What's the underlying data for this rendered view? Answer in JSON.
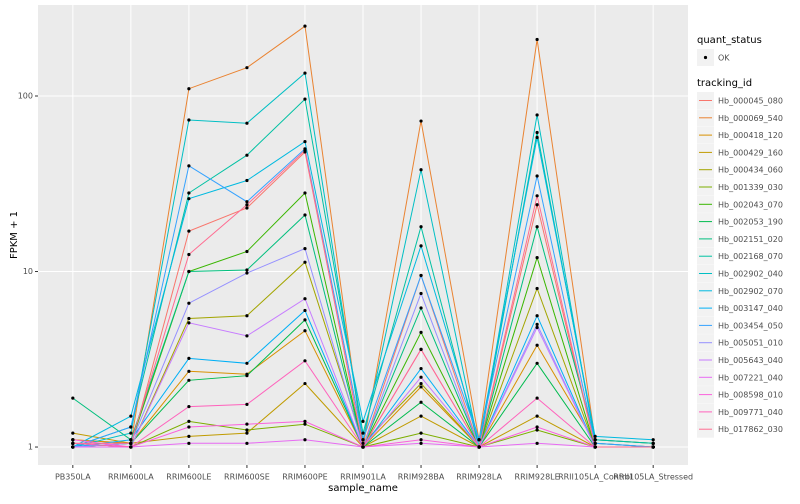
{
  "chart_data": {
    "type": "line",
    "y_label": "FPKM + 1",
    "x_label": "sample_name",
    "categories": [
      "PB350LA",
      "RRIM600LA",
      "RRIM600LE",
      "RRIM600SE",
      "RRIM600PE",
      "RRIM901LA",
      "RRIM928BA",
      "RRIM928LA",
      "RRIM928LE",
      "RRII105LA_Control",
      "RRII105LA_Stressed"
    ],
    "ylim": [
      0.79,
      330
    ],
    "yticks": [
      1,
      10,
      100
    ],
    "log_y": true,
    "grid": true,
    "status_legend_title": "quant_status",
    "status_legend_entry": "OK",
    "point_color": "#000000",
    "legend_title": "tracking_id",
    "series": [
      {
        "name": "Hb_000045_080",
        "color": "#F8766D",
        "values": [
          1.05,
          1.0,
          17,
          23,
          48,
          1.0,
          9.5,
          1.0,
          24,
          1.0,
          1.0
        ]
      },
      {
        "name": "Hb_000069_540",
        "color": "#EA8331",
        "values": [
          1.1,
          1.05,
          110,
          145,
          250,
          1.0,
          72,
          1.1,
          210,
          1.1,
          1.05
        ]
      },
      {
        "name": "Hb_000418_120",
        "color": "#D89000",
        "values": [
          1.1,
          1.05,
          2.7,
          2.6,
          4.6,
          1.0,
          2.2,
          1.0,
          3.8,
          1.05,
          1.0
        ]
      },
      {
        "name": "Hb_000429_160",
        "color": "#C09B00",
        "values": [
          1.2,
          1.05,
          1.15,
          1.2,
          2.3,
          1.0,
          1.5,
          1.0,
          1.5,
          1.0,
          1.0
        ]
      },
      {
        "name": "Hb_000434_060",
        "color": "#A3A500",
        "values": [
          1.0,
          1.0,
          5.4,
          5.6,
          11.3,
          1.05,
          2.3,
          1.0,
          8,
          1.0,
          1.0
        ]
      },
      {
        "name": "Hb_001339_030",
        "color": "#7CAE00",
        "values": [
          1.05,
          1.0,
          1.4,
          1.25,
          1.35,
          1.0,
          1.2,
          1.0,
          1.25,
          1.0,
          1.0
        ]
      },
      {
        "name": "Hb_002043_070",
        "color": "#39B600",
        "values": [
          1.0,
          1.05,
          10,
          13,
          28,
          1.0,
          4.5,
          1.0,
          12,
          1.0,
          1.0
        ]
      },
      {
        "name": "Hb_002053_190",
        "color": "#00BB4E",
        "values": [
          1.0,
          1.05,
          2.4,
          2.55,
          5.3,
          1.0,
          1.8,
          1.0,
          3.0,
          1.0,
          1.0
        ]
      },
      {
        "name": "Hb_002151_020",
        "color": "#00BF7D",
        "values": [
          1.9,
          1.1,
          10,
          10.2,
          21,
          1.0,
          6.2,
          1.0,
          18,
          1.1,
          1.05
        ]
      },
      {
        "name": "Hb_002168_070",
        "color": "#00C1A3",
        "values": [
          1.0,
          1.3,
          28,
          46,
          96,
          1.2,
          18,
          1.0,
          62,
          1.1,
          1.05
        ]
      },
      {
        "name": "Hb_002902_040",
        "color": "#00BFC4",
        "values": [
          1.0,
          1.2,
          73,
          70,
          135,
          1.1,
          38,
          1.0,
          78,
          1.05,
          1.0
        ]
      },
      {
        "name": "Hb_002902_070",
        "color": "#00BAE0",
        "values": [
          1.0,
          1.5,
          26,
          33,
          55,
          1.4,
          14,
          1.1,
          58,
          1.15,
          1.1
        ]
      },
      {
        "name": "Hb_003147_040",
        "color": "#00B0F6",
        "values": [
          1.0,
          1.1,
          3.2,
          3.0,
          6.0,
          1.0,
          2.8,
          1.0,
          5.6,
          1.0,
          1.0
        ]
      },
      {
        "name": "Hb_003454_050",
        "color": "#35A2FF",
        "values": [
          1.0,
          1.3,
          40,
          25,
          50,
          1.1,
          9.5,
          1.1,
          35,
          1.05,
          1.0
        ]
      },
      {
        "name": "Hb_005051_010",
        "color": "#9590FF",
        "values": [
          1.0,
          1.05,
          6.6,
          9.8,
          13.5,
          1.0,
          7.5,
          1.0,
          5,
          1.0,
          1.0
        ]
      },
      {
        "name": "Hb_005643_040",
        "color": "#C77CFF",
        "values": [
          1.0,
          1.0,
          5.1,
          4.3,
          7,
          1.0,
          2.5,
          1.0,
          4.8,
          1.0,
          1.0
        ]
      },
      {
        "name": "Hb_007221_040",
        "color": "#E76BF3",
        "values": [
          1.0,
          1.0,
          1.05,
          1.05,
          1.1,
          1.0,
          1.05,
          1.0,
          1.05,
          1.0,
          1.0
        ]
      },
      {
        "name": "Hb_008598_010",
        "color": "#FA62DB",
        "values": [
          1.1,
          1.0,
          1.3,
          1.35,
          1.4,
          1.0,
          1.1,
          1.0,
          1.3,
          1.0,
          1.0
        ]
      },
      {
        "name": "Hb_009771_040",
        "color": "#FF62BC",
        "values": [
          1.05,
          1.0,
          1.7,
          1.75,
          3.1,
          1.0,
          3.6,
          1.0,
          1.9,
          1.0,
          1.0
        ]
      },
      {
        "name": "Hb_017862_030",
        "color": "#FF6C91",
        "values": [
          1.05,
          1.05,
          12.5,
          24,
          49,
          1.0,
          3.6,
          1.0,
          27,
          1.0,
          1.0
        ]
      }
    ]
  }
}
